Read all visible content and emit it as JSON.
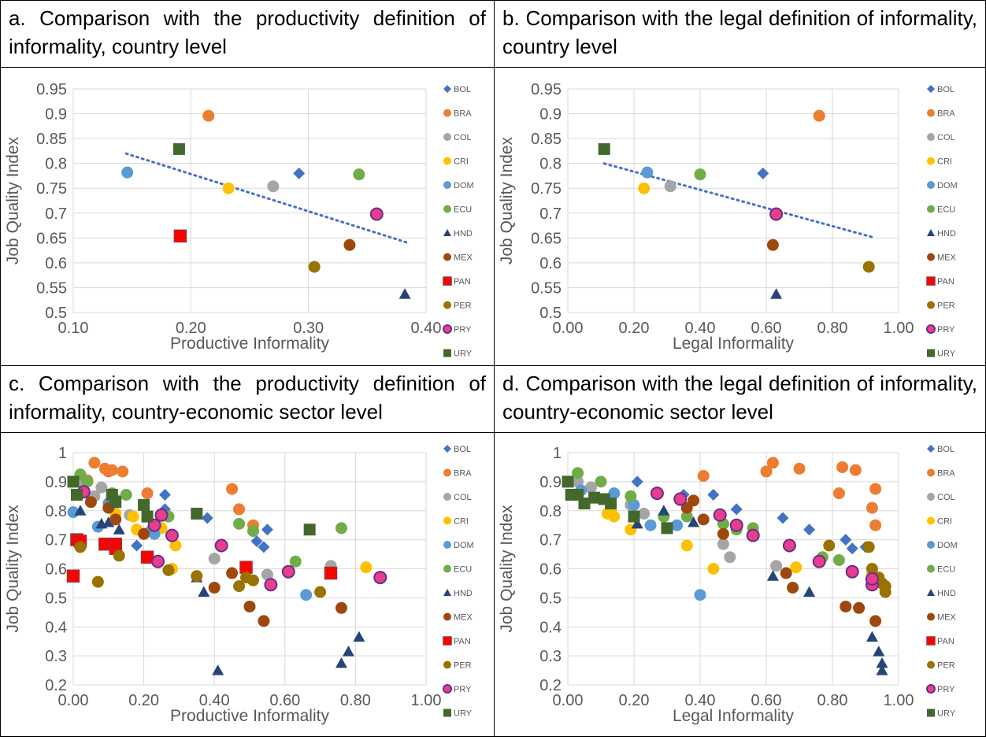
{
  "panels": [
    {
      "id": "a",
      "title": "a. Comparison with the productivity definition of informality, country level"
    },
    {
      "id": "b",
      "title": "b.  Comparison  with  the  legal  definition  of informality, country level"
    },
    {
      "id": "c",
      "title": "c. Comparison with the productivity definition of informality, country-economic sector level"
    },
    {
      "id": "d",
      "title": "d.  Comparison  with  the  legal  definition  of informality, country-economic sector level"
    }
  ],
  "legend": [
    {
      "name": "BOL",
      "color": "#4472C4",
      "marker": "diamond"
    },
    {
      "name": "BRA",
      "color": "#ED7D31",
      "marker": "circle"
    },
    {
      "name": "COL",
      "color": "#A5A5A5",
      "marker": "circle"
    },
    {
      "name": "CRI",
      "color": "#FFC000",
      "marker": "circle"
    },
    {
      "name": "DOM",
      "color": "#5B9BD5",
      "marker": "circle"
    },
    {
      "name": "ECU",
      "color": "#70AD47",
      "marker": "circle"
    },
    {
      "name": "HND",
      "color": "#264478",
      "marker": "triangle"
    },
    {
      "name": "MEX",
      "color": "#9E480E",
      "marker": "circle"
    },
    {
      "name": "PAN",
      "color": "#FF0000",
      "marker": "square-outlined"
    },
    {
      "name": "PER",
      "color": "#997300",
      "marker": "circle"
    },
    {
      "name": "PRY",
      "color": "#E83E8C",
      "marker": "circle-outlined"
    },
    {
      "name": "URY",
      "color": "#43682B",
      "marker": "square"
    }
  ],
  "chart_data": [
    {
      "type": "scatter",
      "panel": "a",
      "xlabel": "Productive Informality",
      "ylabel": "Job Quality Index",
      "xlim": [
        0.1,
        0.4
      ],
      "ylim": [
        0.5,
        0.95
      ],
      "xticks": [
        "0.10",
        "0.20",
        "0.30",
        "0.40"
      ],
      "yticks": [
        "0.5",
        "0.55",
        "0.6",
        "0.65",
        "0.7",
        "0.75",
        "0.8",
        "0.85",
        "0.9",
        "0.95"
      ],
      "trendline": {
        "x": [
          0.145,
          0.385
        ],
        "y": [
          0.82,
          0.64
        ]
      },
      "points": {
        "BOL": [
          [
            0.292,
            0.78
          ]
        ],
        "BRA": [
          [
            0.215,
            0.896
          ]
        ],
        "COL": [
          [
            0.27,
            0.754
          ]
        ],
        "CRI": [
          [
            0.232,
            0.75
          ]
        ],
        "DOM": [
          [
            0.146,
            0.782
          ]
        ],
        "ECU": [
          [
            0.343,
            0.778
          ]
        ],
        "HND": [
          [
            0.382,
            0.537
          ]
        ],
        "MEX": [
          [
            0.335,
            0.636
          ]
        ],
        "PAN": [
          [
            0.191,
            0.654
          ]
        ],
        "PER": [
          [
            0.305,
            0.592
          ]
        ],
        "PRY": [
          [
            0.358,
            0.698
          ]
        ],
        "URY": [
          [
            0.19,
            0.829
          ]
        ]
      }
    },
    {
      "type": "scatter",
      "panel": "b",
      "xlabel": "Legal Informality",
      "ylabel": "Job Quality Index",
      "xlim": [
        0.0,
        1.0
      ],
      "ylim": [
        0.5,
        0.95
      ],
      "xticks": [
        "0.00",
        "0.20",
        "0.40",
        "0.60",
        "0.80",
        "1.00"
      ],
      "yticks": [
        "0.5",
        "0.55",
        "0.6",
        "0.65",
        "0.7",
        "0.75",
        "0.8",
        "0.85",
        "0.9",
        "0.95"
      ],
      "trendline": {
        "x": [
          0.11,
          0.92
        ],
        "y": [
          0.8,
          0.652
        ]
      },
      "points": {
        "BOL": [
          [
            0.59,
            0.78
          ]
        ],
        "BRA": [
          [
            0.76,
            0.896
          ]
        ],
        "COL": [
          [
            0.31,
            0.754
          ]
        ],
        "CRI": [
          [
            0.23,
            0.75
          ]
        ],
        "DOM": [
          [
            0.24,
            0.782
          ]
        ],
        "ECU": [
          [
            0.4,
            0.778
          ]
        ],
        "HND": [
          [
            0.63,
            0.537
          ]
        ],
        "MEX": [
          [
            0.62,
            0.636
          ]
        ],
        "PAN": [],
        "PER": [
          [
            0.91,
            0.592
          ]
        ],
        "PRY": [
          [
            0.63,
            0.698
          ]
        ],
        "URY": [
          [
            0.11,
            0.829
          ]
        ]
      }
    },
    {
      "type": "scatter",
      "panel": "c",
      "xlabel": "Productive Informality",
      "ylabel": "Job Quality Index",
      "xlim": [
        0.0,
        1.0
      ],
      "ylim": [
        0.2,
        1.0
      ],
      "xticks": [
        "0.00",
        "0.20",
        "0.40",
        "0.60",
        "0.80",
        "1.00"
      ],
      "yticks": [
        "0.2",
        "0.3",
        "0.4",
        "0.5",
        "0.6",
        "0.7",
        "0.8",
        "0.9",
        "1"
      ],
      "points": {
        "BOL": [
          [
            0.18,
            0.68
          ],
          [
            0.26,
            0.855
          ],
          [
            0.26,
            0.805
          ],
          [
            0.38,
            0.775
          ],
          [
            0.52,
            0.695
          ],
          [
            0.54,
            0.675
          ],
          [
            0.55,
            0.735
          ],
          [
            0.12,
            0.835
          ]
        ],
        "BRA": [
          [
            0.06,
            0.965
          ],
          [
            0.09,
            0.945
          ],
          [
            0.1,
            0.935
          ],
          [
            0.11,
            0.94
          ],
          [
            0.14,
            0.935
          ],
          [
            0.21,
            0.86
          ],
          [
            0.45,
            0.875
          ],
          [
            0.47,
            0.805
          ],
          [
            0.51,
            0.75
          ],
          [
            0.04,
            0.905
          ]
        ],
        "COL": [
          [
            0.02,
            0.9
          ],
          [
            0.06,
            0.85
          ],
          [
            0.08,
            0.88
          ],
          [
            0.12,
            0.84
          ],
          [
            0.16,
            0.785
          ],
          [
            0.4,
            0.635
          ],
          [
            0.55,
            0.58
          ],
          [
            0.73,
            0.61
          ]
        ],
        "CRI": [
          [
            0.17,
            0.78
          ],
          [
            0.18,
            0.735
          ],
          [
            0.2,
            0.72
          ],
          [
            0.25,
            0.74
          ],
          [
            0.29,
            0.68
          ],
          [
            0.28,
            0.6
          ],
          [
            0.83,
            0.605
          ],
          [
            0.12,
            0.79
          ]
        ],
        "DOM": [
          [
            0.0,
            0.795
          ],
          [
            0.07,
            0.745
          ],
          [
            0.1,
            0.825
          ],
          [
            0.22,
            0.73
          ],
          [
            0.23,
            0.72
          ],
          [
            0.66,
            0.51
          ]
        ],
        "ECU": [
          [
            0.02,
            0.925
          ],
          [
            0.04,
            0.9
          ],
          [
            0.11,
            0.86
          ],
          [
            0.15,
            0.855
          ],
          [
            0.27,
            0.78
          ],
          [
            0.47,
            0.755
          ],
          [
            0.51,
            0.73
          ],
          [
            0.76,
            0.74
          ],
          [
            0.63,
            0.625
          ]
        ],
        "HND": [
          [
            0.02,
            0.8
          ],
          [
            0.08,
            0.755
          ],
          [
            0.1,
            0.76
          ],
          [
            0.13,
            0.735
          ],
          [
            0.35,
            0.57
          ],
          [
            0.37,
            0.52
          ],
          [
            0.41,
            0.25
          ],
          [
            0.76,
            0.275
          ],
          [
            0.78,
            0.315
          ],
          [
            0.81,
            0.365
          ]
        ],
        "MEX": [
          [
            0.05,
            0.83
          ],
          [
            0.1,
            0.81
          ],
          [
            0.12,
            0.77
          ],
          [
            0.2,
            0.72
          ],
          [
            0.4,
            0.535
          ],
          [
            0.45,
            0.585
          ],
          [
            0.5,
            0.47
          ],
          [
            0.54,
            0.42
          ],
          [
            0.76,
            0.465
          ]
        ],
        "PAN": [
          [
            0.0,
            0.575
          ],
          [
            0.01,
            0.7
          ],
          [
            0.02,
            0.695
          ],
          [
            0.09,
            0.685
          ],
          [
            0.12,
            0.67
          ],
          [
            0.12,
            0.685
          ],
          [
            0.21,
            0.64
          ],
          [
            0.49,
            0.605
          ],
          [
            0.73,
            0.585
          ]
        ],
        "PER": [
          [
            0.02,
            0.675
          ],
          [
            0.07,
            0.555
          ],
          [
            0.13,
            0.645
          ],
          [
            0.27,
            0.595
          ],
          [
            0.35,
            0.575
          ],
          [
            0.47,
            0.54
          ],
          [
            0.49,
            0.57
          ],
          [
            0.51,
            0.56
          ],
          [
            0.7,
            0.52
          ]
        ],
        "PRY": [
          [
            0.03,
            0.865
          ],
          [
            0.23,
            0.75
          ],
          [
            0.24,
            0.625
          ],
          [
            0.25,
            0.785
          ],
          [
            0.28,
            0.715
          ],
          [
            0.42,
            0.68
          ],
          [
            0.56,
            0.545
          ],
          [
            0.61,
            0.59
          ],
          [
            0.87,
            0.57
          ]
        ],
        "URY": [
          [
            0.0,
            0.9
          ],
          [
            0.01,
            0.855
          ],
          [
            0.11,
            0.855
          ],
          [
            0.12,
            0.83
          ],
          [
            0.2,
            0.82
          ],
          [
            0.21,
            0.78
          ],
          [
            0.35,
            0.79
          ],
          [
            0.67,
            0.735
          ]
        ]
      }
    },
    {
      "type": "scatter",
      "panel": "d",
      "xlabel": "Legal Informality",
      "ylabel": "Job Quality Index",
      "xlim": [
        0.0,
        1.0
      ],
      "ylim": [
        0.2,
        1.0
      ],
      "xticks": [
        "0.00",
        "0.20",
        "0.40",
        "0.60",
        "0.80",
        "1.00"
      ],
      "yticks": [
        "0.2",
        "0.3",
        "0.4",
        "0.5",
        "0.6",
        "0.7",
        "0.8",
        "0.9",
        "1"
      ],
      "points": {
        "BOL": [
          [
            0.21,
            0.9
          ],
          [
            0.35,
            0.855
          ],
          [
            0.44,
            0.855
          ],
          [
            0.51,
            0.805
          ],
          [
            0.65,
            0.775
          ],
          [
            0.73,
            0.735
          ],
          [
            0.84,
            0.7
          ],
          [
            0.86,
            0.67
          ],
          [
            0.9,
            0.675
          ]
        ],
        "BRA": [
          [
            0.41,
            0.92
          ],
          [
            0.6,
            0.935
          ],
          [
            0.62,
            0.965
          ],
          [
            0.7,
            0.945
          ],
          [
            0.82,
            0.86
          ],
          [
            0.83,
            0.95
          ],
          [
            0.87,
            0.94
          ],
          [
            0.92,
            0.81
          ],
          [
            0.93,
            0.875
          ],
          [
            0.93,
            0.75
          ]
        ],
        "COL": [
          [
            0.03,
            0.9
          ],
          [
            0.07,
            0.88
          ],
          [
            0.19,
            0.82
          ],
          [
            0.23,
            0.79
          ],
          [
            0.47,
            0.685
          ],
          [
            0.49,
            0.64
          ],
          [
            0.63,
            0.61
          ],
          [
            0.92,
            0.58
          ]
        ],
        "CRI": [
          [
            0.12,
            0.79
          ],
          [
            0.14,
            0.78
          ],
          [
            0.19,
            0.735
          ],
          [
            0.36,
            0.68
          ],
          [
            0.44,
            0.6
          ],
          [
            0.69,
            0.605
          ],
          [
            0.92,
            0.58
          ],
          [
            0.13,
            0.8
          ]
        ],
        "DOM": [
          [
            0.04,
            0.87
          ],
          [
            0.14,
            0.86
          ],
          [
            0.2,
            0.82
          ],
          [
            0.25,
            0.75
          ],
          [
            0.33,
            0.75
          ],
          [
            0.4,
            0.51
          ]
        ],
        "ECU": [
          [
            0.03,
            0.93
          ],
          [
            0.1,
            0.9
          ],
          [
            0.19,
            0.85
          ],
          [
            0.29,
            0.78
          ],
          [
            0.36,
            0.78
          ],
          [
            0.47,
            0.755
          ],
          [
            0.51,
            0.735
          ],
          [
            0.56,
            0.74
          ],
          [
            0.77,
            0.64
          ],
          [
            0.82,
            0.63
          ]
        ],
        "HND": [
          [
            0.21,
            0.755
          ],
          [
            0.29,
            0.8
          ],
          [
            0.38,
            0.76
          ],
          [
            0.62,
            0.575
          ],
          [
            0.73,
            0.52
          ],
          [
            0.92,
            0.365
          ],
          [
            0.94,
            0.315
          ],
          [
            0.95,
            0.275
          ],
          [
            0.95,
            0.25
          ]
        ],
        "MEX": [
          [
            0.36,
            0.81
          ],
          [
            0.38,
            0.835
          ],
          [
            0.41,
            0.77
          ],
          [
            0.47,
            0.72
          ],
          [
            0.66,
            0.585
          ],
          [
            0.68,
            0.535
          ],
          [
            0.84,
            0.47
          ],
          [
            0.88,
            0.465
          ],
          [
            0.93,
            0.42
          ]
        ],
        "PAN": [],
        "PER": [
          [
            0.79,
            0.68
          ],
          [
            0.91,
            0.675
          ],
          [
            0.92,
            0.6
          ],
          [
            0.94,
            0.57
          ],
          [
            0.95,
            0.55
          ],
          [
            0.96,
            0.54
          ],
          [
            0.96,
            0.52
          ]
        ],
        "PRY": [
          [
            0.27,
            0.86
          ],
          [
            0.34,
            0.84
          ],
          [
            0.46,
            0.785
          ],
          [
            0.51,
            0.75
          ],
          [
            0.56,
            0.715
          ],
          [
            0.67,
            0.68
          ],
          [
            0.76,
            0.625
          ],
          [
            0.86,
            0.59
          ],
          [
            0.92,
            0.545
          ],
          [
            0.92,
            0.565
          ]
        ],
        "URY": [
          [
            0.0,
            0.9
          ],
          [
            0.01,
            0.855
          ],
          [
            0.03,
            0.855
          ],
          [
            0.05,
            0.825
          ],
          [
            0.08,
            0.845
          ],
          [
            0.11,
            0.84
          ],
          [
            0.13,
            0.825
          ],
          [
            0.2,
            0.78
          ],
          [
            0.3,
            0.74
          ]
        ]
      }
    }
  ]
}
